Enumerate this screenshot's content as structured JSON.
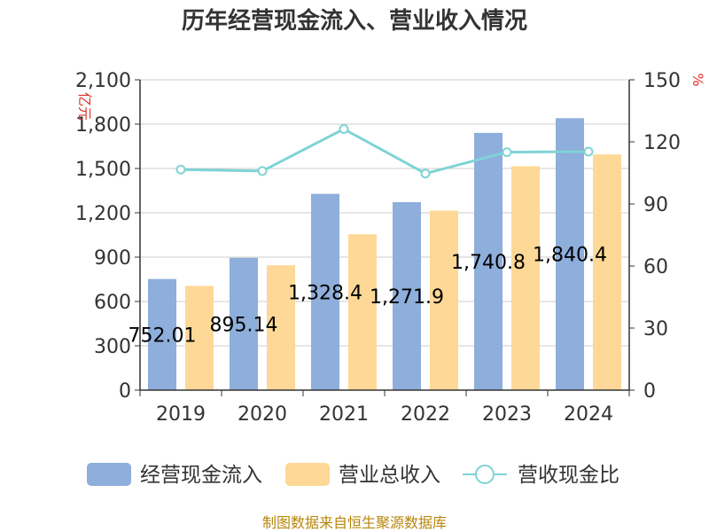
{
  "source_note": "制图数据来自恒生聚源数据库",
  "chart_data": {
    "type": "bar",
    "title": "历年经营现金流入、营业收入情况",
    "categories": [
      "2019",
      "2020",
      "2021",
      "2022",
      "2023",
      "2024"
    ],
    "left_axis": {
      "unit": "亿元",
      "ylim": [
        0,
        2100
      ],
      "ticks": [
        "0",
        "300",
        "600",
        "900",
        "1,200",
        "1,500",
        "1,800",
        "2,100"
      ]
    },
    "right_axis": {
      "unit": "%",
      "ylim": [
        0,
        150
      ],
      "ticks": [
        "0",
        "30",
        "60",
        "90",
        "120",
        "150"
      ]
    },
    "grid": true,
    "legend_position": "bottom",
    "series": [
      {
        "name": "经营现金流入",
        "type": "bar",
        "axis": "left",
        "color": "#8eaedb",
        "values": [
          752.01,
          895.14,
          1328.4,
          1271.9,
          1740.8,
          1840.4
        ],
        "labels": [
          "752.01",
          "895.14",
          "1,328.4",
          "1,271.9",
          "1,740.8",
          "1,840.4"
        ]
      },
      {
        "name": "营业总收入",
        "type": "bar",
        "axis": "left",
        "color": "#fed896",
        "values": [
          705,
          845,
          1055,
          1215,
          1515,
          1595
        ]
      },
      {
        "name": "营收现金比",
        "type": "line",
        "axis": "right",
        "color": "#7fd3d6",
        "values": [
          106.6,
          105.9,
          126.2,
          104.7,
          115.0,
          115.3
        ]
      }
    ]
  }
}
